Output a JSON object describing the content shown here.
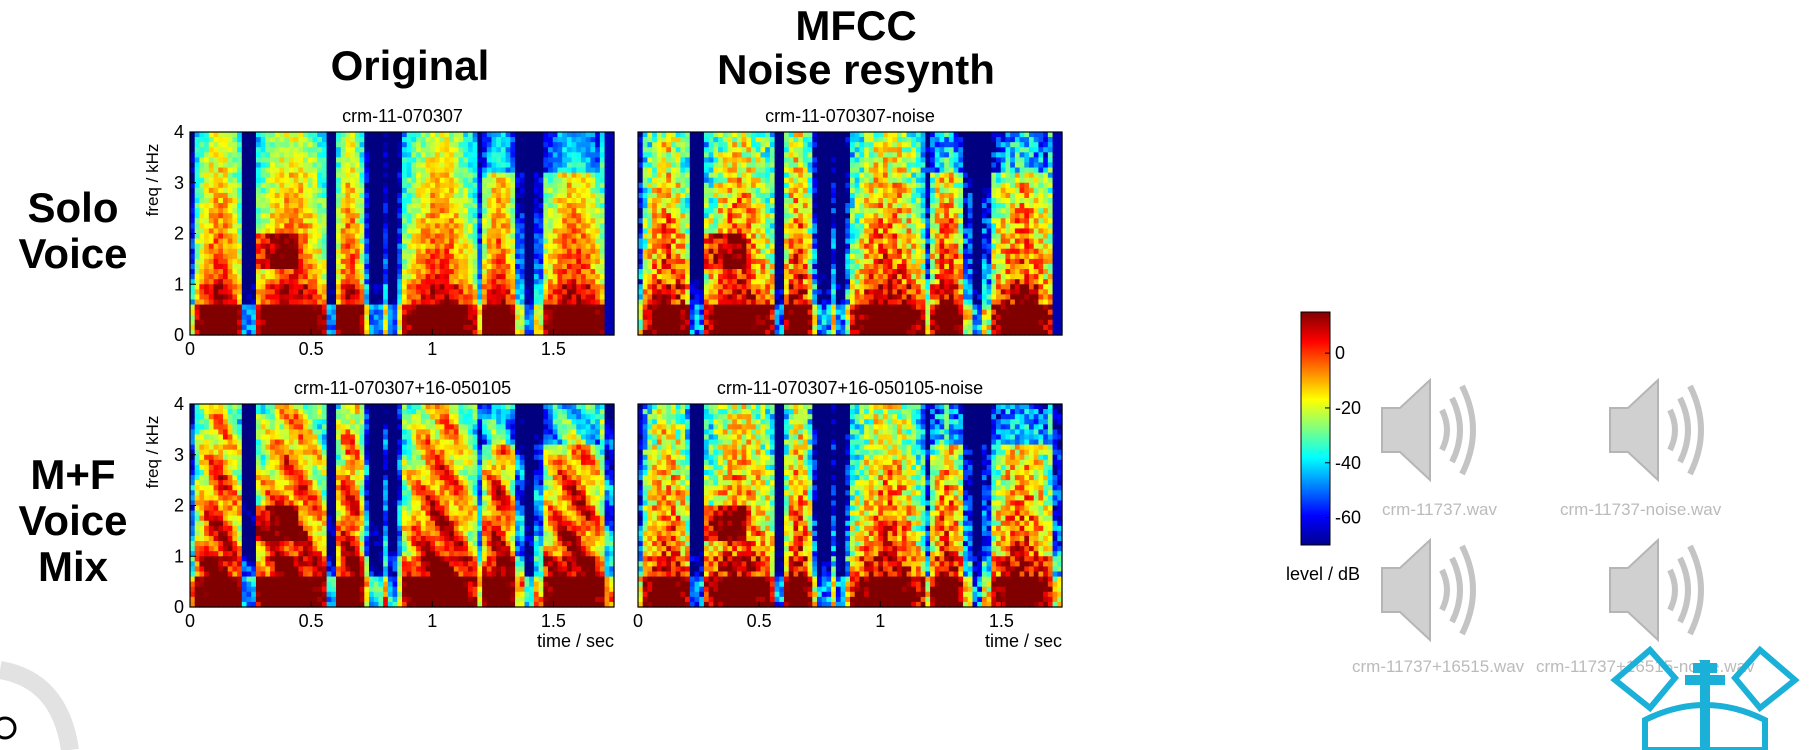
{
  "headers": {
    "original": "Original",
    "mfcc_line1": "MFCC",
    "mfcc_line2": "Noise resynth"
  },
  "row_labels": {
    "solo_line1": "Solo",
    "solo_line2": "Voice",
    "mix_line1": "M+F",
    "mix_line2": "Voice",
    "mix_line3": "Mix"
  },
  "chart_data": [
    {
      "type": "heatmap",
      "title": "crm-11-070307",
      "ylabel": "freq / kHz",
      "xlabel": "",
      "xlim": [
        0,
        1.75
      ],
      "ylim": [
        0,
        4
      ],
      "xticks": [
        "0",
        "0.5",
        "1",
        "1.5"
      ],
      "yticks": [
        "0",
        "1",
        "2",
        "3",
        "4"
      ],
      "colormap": "jet"
    },
    {
      "type": "heatmap",
      "title": "crm-11-070307-noise",
      "xlabel": "",
      "xlim": [
        0,
        1.75
      ],
      "ylim": [
        0,
        4
      ],
      "xticks": [],
      "colormap": "jet"
    },
    {
      "type": "heatmap",
      "title": "crm-11-070307+16-050105",
      "ylabel": "freq / kHz",
      "xlabel": "time / sec",
      "xlim": [
        0,
        1.75
      ],
      "ylim": [
        0,
        4
      ],
      "xticks": [
        "0",
        "0.5",
        "1",
        "1.5"
      ],
      "yticks": [
        "0",
        "1",
        "2",
        "3",
        "4"
      ],
      "colormap": "jet"
    },
    {
      "type": "heatmap",
      "title": "crm-11-070307+16-050105-noise",
      "xlabel": "time / sec",
      "xlim": [
        0,
        1.75
      ],
      "ylim": [
        0,
        4
      ],
      "xticks": [
        "0",
        "0.5",
        "1",
        "1.5"
      ],
      "colormap": "jet"
    }
  ],
  "colorbar": {
    "label": "level / dB",
    "ticks": [
      "0",
      "-20",
      "-40",
      "-60"
    ],
    "range": [
      -70,
      15
    ]
  },
  "audio_files": [
    {
      "label": "crm-11737.wav"
    },
    {
      "label": "crm-11737-noise.wav"
    },
    {
      "label": "crm-11737+16515.wav"
    },
    {
      "label": "crm-11737+16515-noise.wav"
    }
  ],
  "colors": {
    "speaker_gray": "#c8c8c8",
    "logo_cyan": "#1ab0d8"
  }
}
